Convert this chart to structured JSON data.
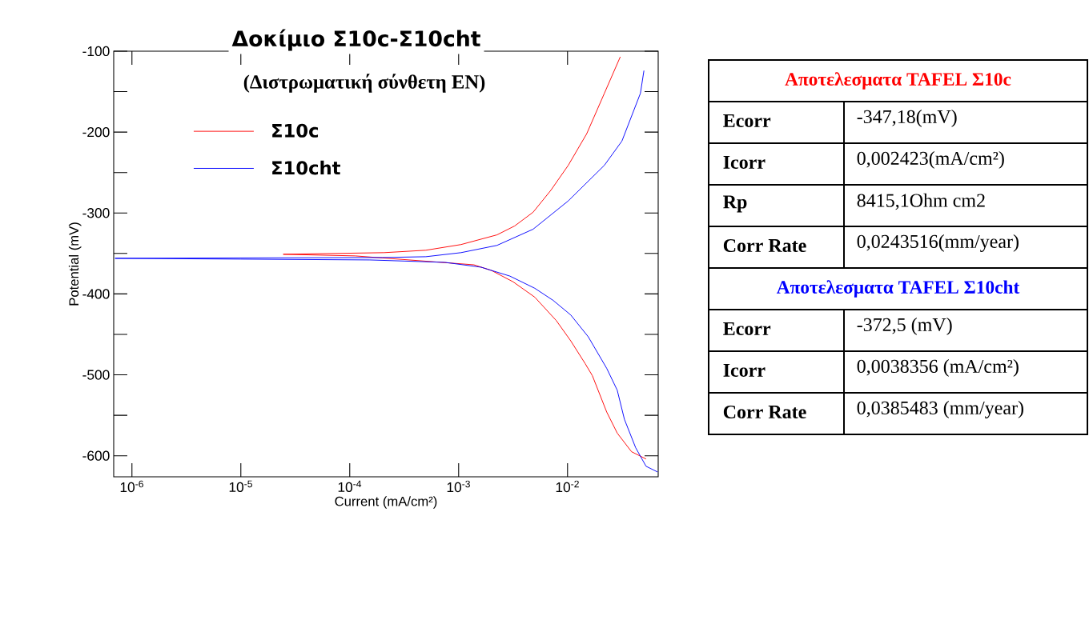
{
  "chart_data": [
    {
      "type": "line",
      "title": "Δοκίμιο Σ10c-Σ10cht",
      "subtitle": "(Διστρωματική σύνθετη ΕΝ)",
      "xlabel": "Current (mA/cm²)",
      "ylabel": "Potential (mV)",
      "log": "x",
      "legend": "top left",
      "xlim": [
        6.8e-07,
        0.068
      ],
      "ylim": [
        -626,
        -100
      ],
      "xticks": [
        {
          "value": 1e-06,
          "label": "10$^{-6}$"
        },
        {
          "value": 1e-05,
          "label": "10$^{-5}$"
        },
        {
          "value": 0.0001,
          "label": "10$^{-4}$"
        },
        {
          "value": 0.001,
          "label": "10$^{-3}$"
        },
        {
          "value": 0.01,
          "label": "10$^{-2}$"
        }
      ],
      "yticks": [
        -600,
        -500,
        -400,
        -300,
        -200,
        -100
      ],
      "series": [
        {
          "name": "Σ10c",
          "color": "#ff0000",
          "x": [
            0.0526,
            0.0387,
            0.0286,
            0.0229,
            0.0169,
            0.0145,
            0.0107,
            0.00789,
            0.005,
            0.00316,
            0.002,
            0.00138,
            0.000112,
            2.45e-05,
            0.000207,
            0.0005,
            0.00105,
            0.00225,
            0.00327,
            0.00483,
            0.00702,
            0.01016,
            0.015,
            0.0218,
            0.0305
          ],
          "values": [
            -604,
            -595,
            -572,
            -546,
            -501,
            -486,
            -458,
            -433,
            -404,
            -385,
            -371,
            -364,
            -353,
            -351,
            -349,
            -346,
            -339,
            -327,
            -316,
            -299,
            -272,
            -241,
            -202,
            -152,
            -107
          ]
        },
        {
          "name": "Σ10cht",
          "color": "#0000ff",
          "x": [
            0.067,
            0.0526,
            0.0422,
            0.0333,
            0.0286,
            0.0229,
            0.0155,
            0.0107,
            0.00738,
            0.005,
            0.00296,
            0.00161,
            0.00075,
            0.000153,
            1e-05,
            7e-07,
            0.0002,
            0.0005,
            0.00105,
            0.00225,
            0.00483,
            0.01016,
            0.0218,
            0.0316,
            0.0467,
            0.0503
          ],
          "values": [
            -620,
            -613,
            -590,
            -555,
            -519,
            -492,
            -453,
            -426,
            -408,
            -393,
            -378,
            -367,
            -361,
            -358,
            -357,
            -356,
            -355,
            -354,
            -349,
            -340,
            -320,
            -285,
            -241,
            -211,
            -152,
            -124
          ]
        }
      ]
    },
    {
      "type": "other",
      "title": "Αποτελεσματα TAFEL Σ10c",
      "color": "#ff0000",
      "categories": [
        "Ecorr",
        "Icorr",
        "Rp",
        "Corr Rate"
      ],
      "annotations": [
        "-347,18(mV)",
        "0,002423(mA/cm²)",
        "8415,1Ohm cm2",
        "0,0243516(mm/year)"
      ]
    },
    {
      "type": "other",
      "title": "Αποτελεσματα TAFEL Σ10cht",
      "color": "#0000ff",
      "categories": [
        "Ecorr",
        "Icorr",
        "Corr Rate"
      ],
      "annotations": [
        "-372,5 (mV)",
        "0,0038356 (mA/cm²)",
        "0,0385483 (mm/year)"
      ]
    }
  ]
}
